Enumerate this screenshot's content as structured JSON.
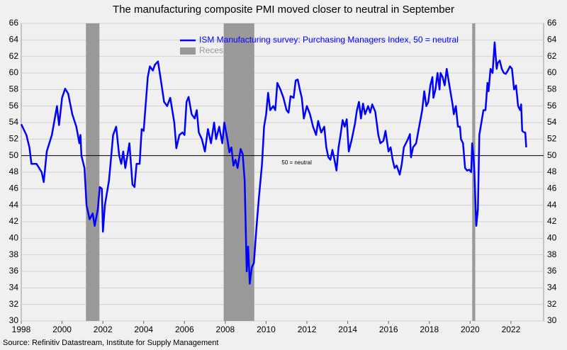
{
  "chart_data": {
    "type": "line",
    "title": "The manufacturing composite PMI moved closer to neutral in September",
    "source": "Source: Refinitiv Datastream, Institute for Supply Management",
    "annotation": "50 = neutral",
    "reference_line": 50,
    "annotation_x": 2011.5,
    "recession_name": "Recession",
    "recession_color": "#999999",
    "recessions": [
      [
        2001.17,
        2001.83
      ],
      [
        2007.92,
        2009.42
      ],
      [
        2020.1,
        2020.25
      ]
    ],
    "x": [
      1998.0,
      1998.25,
      1998.4,
      1998.5,
      1998.75,
      1999.0,
      1999.1,
      1999.25,
      1999.5,
      1999.75,
      1999.85,
      2000.0,
      2000.15,
      2000.3,
      2000.5,
      2000.7,
      2000.85,
      2000.9,
      2000.95,
      2001.1,
      2001.2,
      2001.35,
      2001.5,
      2001.6,
      2001.75,
      2001.85,
      2001.95,
      2002.0,
      2002.1,
      2002.3,
      2002.5,
      2002.65,
      2002.8,
      2002.9,
      2003.0,
      2003.1,
      2003.3,
      2003.45,
      2003.55,
      2003.65,
      2003.8,
      2003.9,
      2004.0,
      2004.2,
      2004.3,
      2004.45,
      2004.55,
      2004.7,
      2004.85,
      2005.0,
      2005.15,
      2005.3,
      2005.5,
      2005.6,
      2005.75,
      2005.9,
      2006.0,
      2006.1,
      2006.2,
      2006.35,
      2006.5,
      2006.6,
      2006.7,
      2006.85,
      2007.0,
      2007.15,
      2007.3,
      2007.45,
      2007.55,
      2007.7,
      2007.85,
      2007.95,
      2008.1,
      2008.2,
      2008.3,
      2008.4,
      2008.5,
      2008.6,
      2008.7,
      2008.75,
      2008.85,
      2008.95,
      2009.05,
      2009.12,
      2009.2,
      2009.3,
      2009.4,
      2009.55,
      2009.65,
      2009.8,
      2009.9,
      2010.0,
      2010.1,
      2010.2,
      2010.35,
      2010.45,
      2010.55,
      2010.7,
      2010.85,
      2011.0,
      2011.1,
      2011.2,
      2011.35,
      2011.45,
      2011.55,
      2011.65,
      2011.75,
      2011.85,
      2012.0,
      2012.15,
      2012.3,
      2012.45,
      2012.55,
      2012.7,
      2012.85,
      2012.95,
      2013.05,
      2013.15,
      2013.25,
      2013.35,
      2013.45,
      2013.55,
      2013.65,
      2013.75,
      2013.85,
      2013.95,
      2014.05,
      2014.2,
      2014.35,
      2014.45,
      2014.55,
      2014.65,
      2014.75,
      2014.85,
      2015.0,
      2015.1,
      2015.2,
      2015.35,
      2015.5,
      2015.6,
      2015.75,
      2015.85,
      2016.0,
      2016.1,
      2016.2,
      2016.3,
      2016.4,
      2016.55,
      2016.65,
      2016.75,
      2016.85,
      2016.95,
      2017.05,
      2017.1,
      2017.2,
      2017.35,
      2017.5,
      2017.65,
      2017.75,
      2017.85,
      2017.95,
      2018.05,
      2018.15,
      2018.2,
      2018.3,
      2018.4,
      2018.5,
      2018.55,
      2018.65,
      2018.75,
      2018.85,
      2018.95,
      2019.05,
      2019.15,
      2019.2,
      2019.3,
      2019.4,
      2019.5,
      2019.55,
      2019.65,
      2019.75,
      2019.85,
      2019.95,
      2020.05,
      2020.1,
      2020.15,
      2020.2,
      2020.3,
      2020.38,
      2020.45,
      2020.55,
      2020.65,
      2020.75,
      2020.85,
      2020.9,
      2021.0,
      2021.1,
      2021.2,
      2021.3,
      2021.35,
      2021.45,
      2021.55,
      2021.65,
      2021.75,
      2021.85,
      2021.95,
      2022.05,
      2022.15,
      2022.25,
      2022.35,
      2022.45,
      2022.5,
      2022.55,
      2022.65,
      2022.7,
      2022.75
    ],
    "series": [
      {
        "name": "ISM Manufacturing survey: Purchasing Managers Index, 50 = neutral",
        "color": "#0000ff",
        "values": [
          53.8,
          52.5,
          51,
          49,
          49,
          48,
          46.8,
          50.5,
          52.5,
          56,
          53.7,
          57,
          58.1,
          57.5,
          55,
          53.5,
          51.5,
          52.5,
          50,
          48.5,
          44,
          42.3,
          43,
          41.5,
          43.5,
          46.2,
          46,
          40.8,
          44,
          47,
          52.5,
          53.5,
          50,
          49,
          50.5,
          48.5,
          51.5,
          46.5,
          46.2,
          49,
          49,
          53.2,
          53,
          59.5,
          60.8,
          60.3,
          61,
          61.4,
          59,
          56.5,
          56,
          57,
          54,
          50.9,
          52.5,
          52.8,
          52.5,
          56.5,
          57.1,
          55,
          54.5,
          55.5,
          52.8,
          52,
          50.5,
          53.2,
          51.5,
          54,
          52,
          53.5,
          51.5,
          54,
          52,
          50.4,
          51,
          48.8,
          49.5,
          48.5,
          50,
          50.8,
          50.2,
          47,
          36,
          39,
          34.5,
          36.5,
          37,
          42,
          45,
          49,
          53.5,
          55,
          57.6,
          55.5,
          56,
          55.5,
          58.8,
          58,
          57,
          55.5,
          55.2,
          57.2,
          57,
          59.1,
          59.2,
          58,
          57,
          54.5,
          56,
          55,
          53.5,
          52.5,
          54.2,
          52.8,
          53.5,
          51,
          49.8,
          49.5,
          50.7,
          49.5,
          48.2,
          51,
          52.5,
          54.3,
          53.5,
          54.4,
          50.5,
          52,
          53.8,
          55.5,
          56.5,
          54.5,
          56.3,
          55,
          56,
          55.2,
          56.2,
          55.3,
          52.5,
          51.5,
          51.8,
          53,
          50.5,
          51,
          49.5,
          48.5,
          48.8,
          47.7,
          49,
          51,
          51.5,
          52,
          52.6,
          49.8,
          51,
          51.5,
          53.5,
          55.5,
          57.8,
          56,
          56.5,
          58.5,
          59.5,
          57,
          58,
          60,
          58,
          60,
          59.5,
          58.5,
          60.5,
          59,
          57.5,
          56,
          55,
          56,
          53.5,
          53.5,
          52,
          51.5,
          48.5,
          48.2,
          48.3,
          48,
          51.5,
          50.2,
          48.5,
          41.5,
          43.5,
          52.5,
          54,
          55.5,
          55.5,
          58.8,
          57.8,
          60.5,
          60,
          63.7,
          60.5,
          61.2,
          61.5,
          60.5,
          60,
          59.9,
          60.3,
          60.8,
          60.5,
          58,
          58.5,
          56,
          55.5,
          56.2,
          53,
          52.8,
          52.8,
          51
        ]
      }
    ],
    "xlim": [
      1998,
      2023.6
    ],
    "xticks": [
      1998,
      2000,
      2002,
      2004,
      2006,
      2008,
      2010,
      2012,
      2014,
      2016,
      2018,
      2020,
      2022
    ],
    "ylim": [
      30,
      66
    ],
    "yticks": [
      30,
      32,
      34,
      36,
      38,
      40,
      42,
      44,
      46,
      48,
      50,
      52,
      54,
      56,
      58,
      60,
      62,
      64,
      66
    ],
    "grid": true
  }
}
